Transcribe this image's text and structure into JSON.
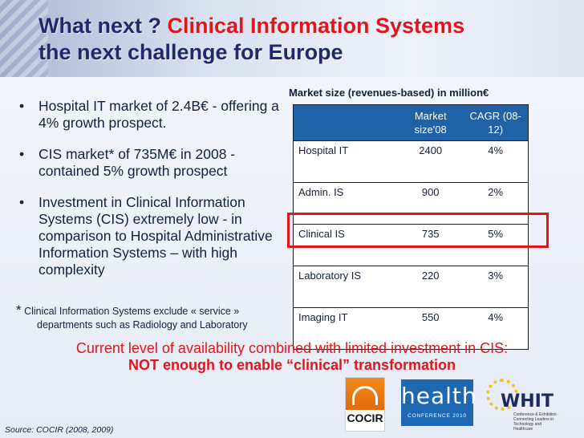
{
  "header": {
    "title_part1": "What next ? ",
    "title_red": "Clinical Information Systems",
    "title_line2": "the next  challenge for Europe"
  },
  "bullets": [
    "Hospital IT market of 2.4B€ - offering a 4% growth prospect.",
    "CIS market* of 735M€ in 2008  - contained 5% growth prospect",
    "Investment in Clinical Information Systems (CIS) extremely low -   in comparison to Hospital Administrative Information Systems – with high complexity"
  ],
  "bullet_marker": "•",
  "footnote": {
    "star": "*",
    "line1": " Clinical Information Systems exclude « service »",
    "line2": "departments such as Radiology and Laboratory"
  },
  "market_table": {
    "title": "Market size (revenues-based) in million€",
    "headers": [
      "",
      "Market size'08",
      "CAGR (08-12)"
    ],
    "rows": [
      {
        "label": "Hospital IT",
        "market": "2400",
        "cagr": "4%"
      },
      {
        "label": "Admin. IS",
        "market": "900",
        "cagr": "2%"
      },
      {
        "label": "Clinical IS",
        "market": "735",
        "cagr": "5%"
      },
      {
        "label": "Laboratory IS",
        "market": "220",
        "cagr": "3%"
      },
      {
        "label": "Imaging IT",
        "market": "550",
        "cagr": "4%"
      }
    ],
    "highlight_color": "#e3141b",
    "header_color": "#1f62a8"
  },
  "conclusion": {
    "line1": "Current level of availability combined with limited investment in CIS:",
    "line2": "NOT enough to enable “clinical” transformation"
  },
  "logos": {
    "cocir": "COCIR",
    "health": "health",
    "health_sub": "CONFERENCE 2010",
    "whit": "WHIT",
    "whit_sub": "Conference & Exhibition · Connecting Leaders in Technology and Healthcare"
  },
  "source": "Source: COCIR (2008, 2009)",
  "colors": {
    "title": "#1f2a6b",
    "accent_red": "#e3141b"
  }
}
